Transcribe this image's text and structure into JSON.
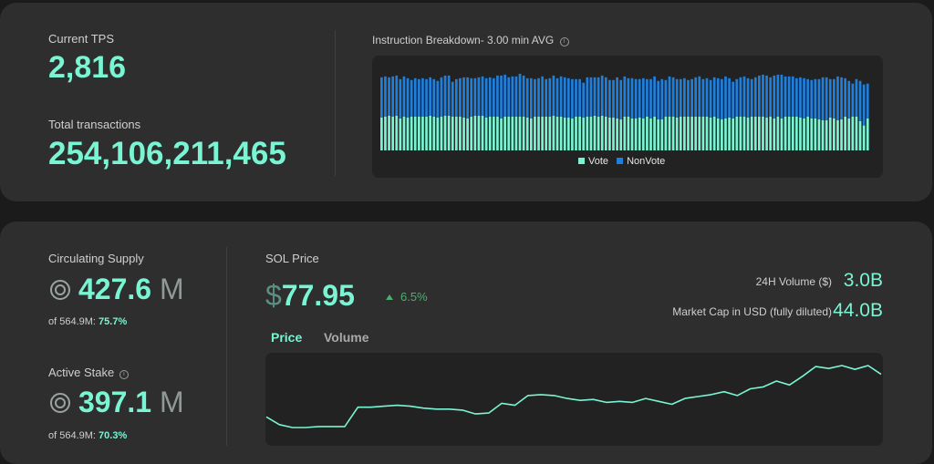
{
  "colors": {
    "accent": "#79f5d3",
    "vote": "#79f5d3",
    "nonvote": "#1e7fdc",
    "positive": "#4caf70"
  },
  "network": {
    "current_tps_label": "Current TPS",
    "current_tps_value": "2,816",
    "total_tx_label": "Total transactions",
    "total_tx_value": "254,106,211,465"
  },
  "instruction_breakdown": {
    "title": "Instruction Breakdown- 3.00 min AVG",
    "info_icon": "info-icon",
    "legend": [
      {
        "name": "Vote",
        "color": "#79f5d3"
      },
      {
        "name": "NonVote",
        "color": "#1e7fdc"
      }
    ]
  },
  "chart_data": [
    {
      "type": "bar",
      "stacked": true,
      "title": "Instruction Breakdown- 3.00 min AVG",
      "series": [
        {
          "name": "Vote",
          "values": [
            37,
            38,
            39,
            38,
            39,
            36,
            38,
            37,
            38,
            38,
            38,
            38,
            38,
            39,
            38,
            37,
            38,
            39,
            39,
            38,
            38,
            38,
            37,
            36,
            38,
            39,
            39,
            39,
            37,
            38,
            38,
            38,
            36,
            38,
            38,
            38,
            38,
            38,
            38,
            37,
            36,
            38,
            38,
            38,
            38,
            38,
            39,
            38,
            38,
            37,
            37,
            36,
            38,
            38,
            37,
            38,
            38,
            39,
            38,
            39,
            38,
            37,
            37,
            36,
            35,
            38,
            38,
            36,
            36,
            37,
            36,
            38,
            36,
            38,
            35,
            35,
            38,
            38,
            38,
            37,
            38,
            38,
            38,
            38,
            38,
            38,
            38,
            38,
            37,
            38,
            36,
            35,
            36,
            37,
            36,
            38,
            38,
            38,
            37,
            38,
            38,
            38,
            38,
            37,
            38,
            36,
            38,
            36,
            38,
            38,
            38,
            38,
            37,
            36,
            38,
            36,
            36,
            35,
            34,
            34,
            37,
            36,
            34,
            35,
            38,
            36,
            38,
            38,
            33,
            28,
            36
          ]
        },
        {
          "name": "NonVote",
          "values": [
            45,
            45,
            43,
            45,
            45,
            44,
            45,
            44,
            41,
            43,
            42,
            43,
            42,
            43,
            42,
            41,
            44,
            45,
            45,
            39,
            42,
            43,
            45,
            46,
            43,
            42,
            43,
            44,
            44,
            44,
            43,
            46,
            48,
            47,
            44,
            45,
            45,
            48,
            46,
            44,
            45,
            42,
            43,
            45,
            42,
            43,
            45,
            43,
            45,
            45,
            44,
            44,
            42,
            42,
            39,
            44,
            44,
            43,
            44,
            45,
            44,
            42,
            42,
            46,
            44,
            45,
            43,
            45,
            44,
            43,
            45,
            42,
            44,
            45,
            43,
            45,
            41,
            45,
            44,
            43,
            42,
            43,
            41,
            42,
            44,
            45,
            42,
            43,
            42,
            44,
            45,
            45,
            47,
            44,
            41,
            42,
            44,
            45,
            44,
            42,
            44,
            46,
            47,
            47,
            44,
            48,
            47,
            49,
            45,
            45,
            45,
            43,
            45,
            45,
            42,
            43,
            44,
            45,
            48,
            48,
            43,
            44,
            49,
            47,
            43,
            42,
            37,
            42,
            45,
            46,
            39
          ]
        }
      ],
      "ylim": [
        0,
        90
      ],
      "legend": "bottom-center",
      "grid": false
    },
    {
      "type": "line",
      "title": "SOL Price",
      "series": [
        {
          "name": "Price",
          "values": [
            72.0,
            71.2,
            70.9,
            70.9,
            71.0,
            71.0,
            71.0,
            73.0,
            73.0,
            73.1,
            73.2,
            73.1,
            72.9,
            72.8,
            72.8,
            72.7,
            72.3,
            72.4,
            73.4,
            73.2,
            74.2,
            74.3,
            74.2,
            73.9,
            73.7,
            73.8,
            73.5,
            73.6,
            73.5,
            73.9,
            73.6,
            73.3,
            73.9,
            74.1,
            74.3,
            74.6,
            74.2,
            74.9,
            75.1,
            75.7,
            75.3,
            76.2,
            77.2,
            77.0,
            77.3,
            76.9,
            77.3,
            76.4
          ]
        }
      ],
      "grid": false
    }
  ],
  "supply": {
    "circulating_label": "Circulating Supply",
    "circulating_value": "427.6",
    "circulating_unit": "M",
    "circulating_sub_prefix": "of 564.9M: ",
    "circulating_sub_pct": "75.7%",
    "active_stake_label": "Active Stake",
    "active_stake_value": "397.1",
    "active_stake_unit": "M",
    "active_stake_sub_prefix": "of 564.9M: ",
    "active_stake_sub_pct": "70.3%",
    "coin_icon": "sol-coin-icon"
  },
  "price": {
    "label": "SOL Price",
    "currency": "$",
    "value": "77.95",
    "change": "6.5%",
    "change_icon": "triangle-up-icon",
    "volume_label": "24H Volume ($)",
    "volume_value": "3.0B",
    "mcap_label": "Market Cap in USD (fully diluted)",
    "mcap_value": "44.0B",
    "tabs": [
      {
        "label": "Price",
        "active": true
      },
      {
        "label": "Volume",
        "active": false
      }
    ]
  }
}
